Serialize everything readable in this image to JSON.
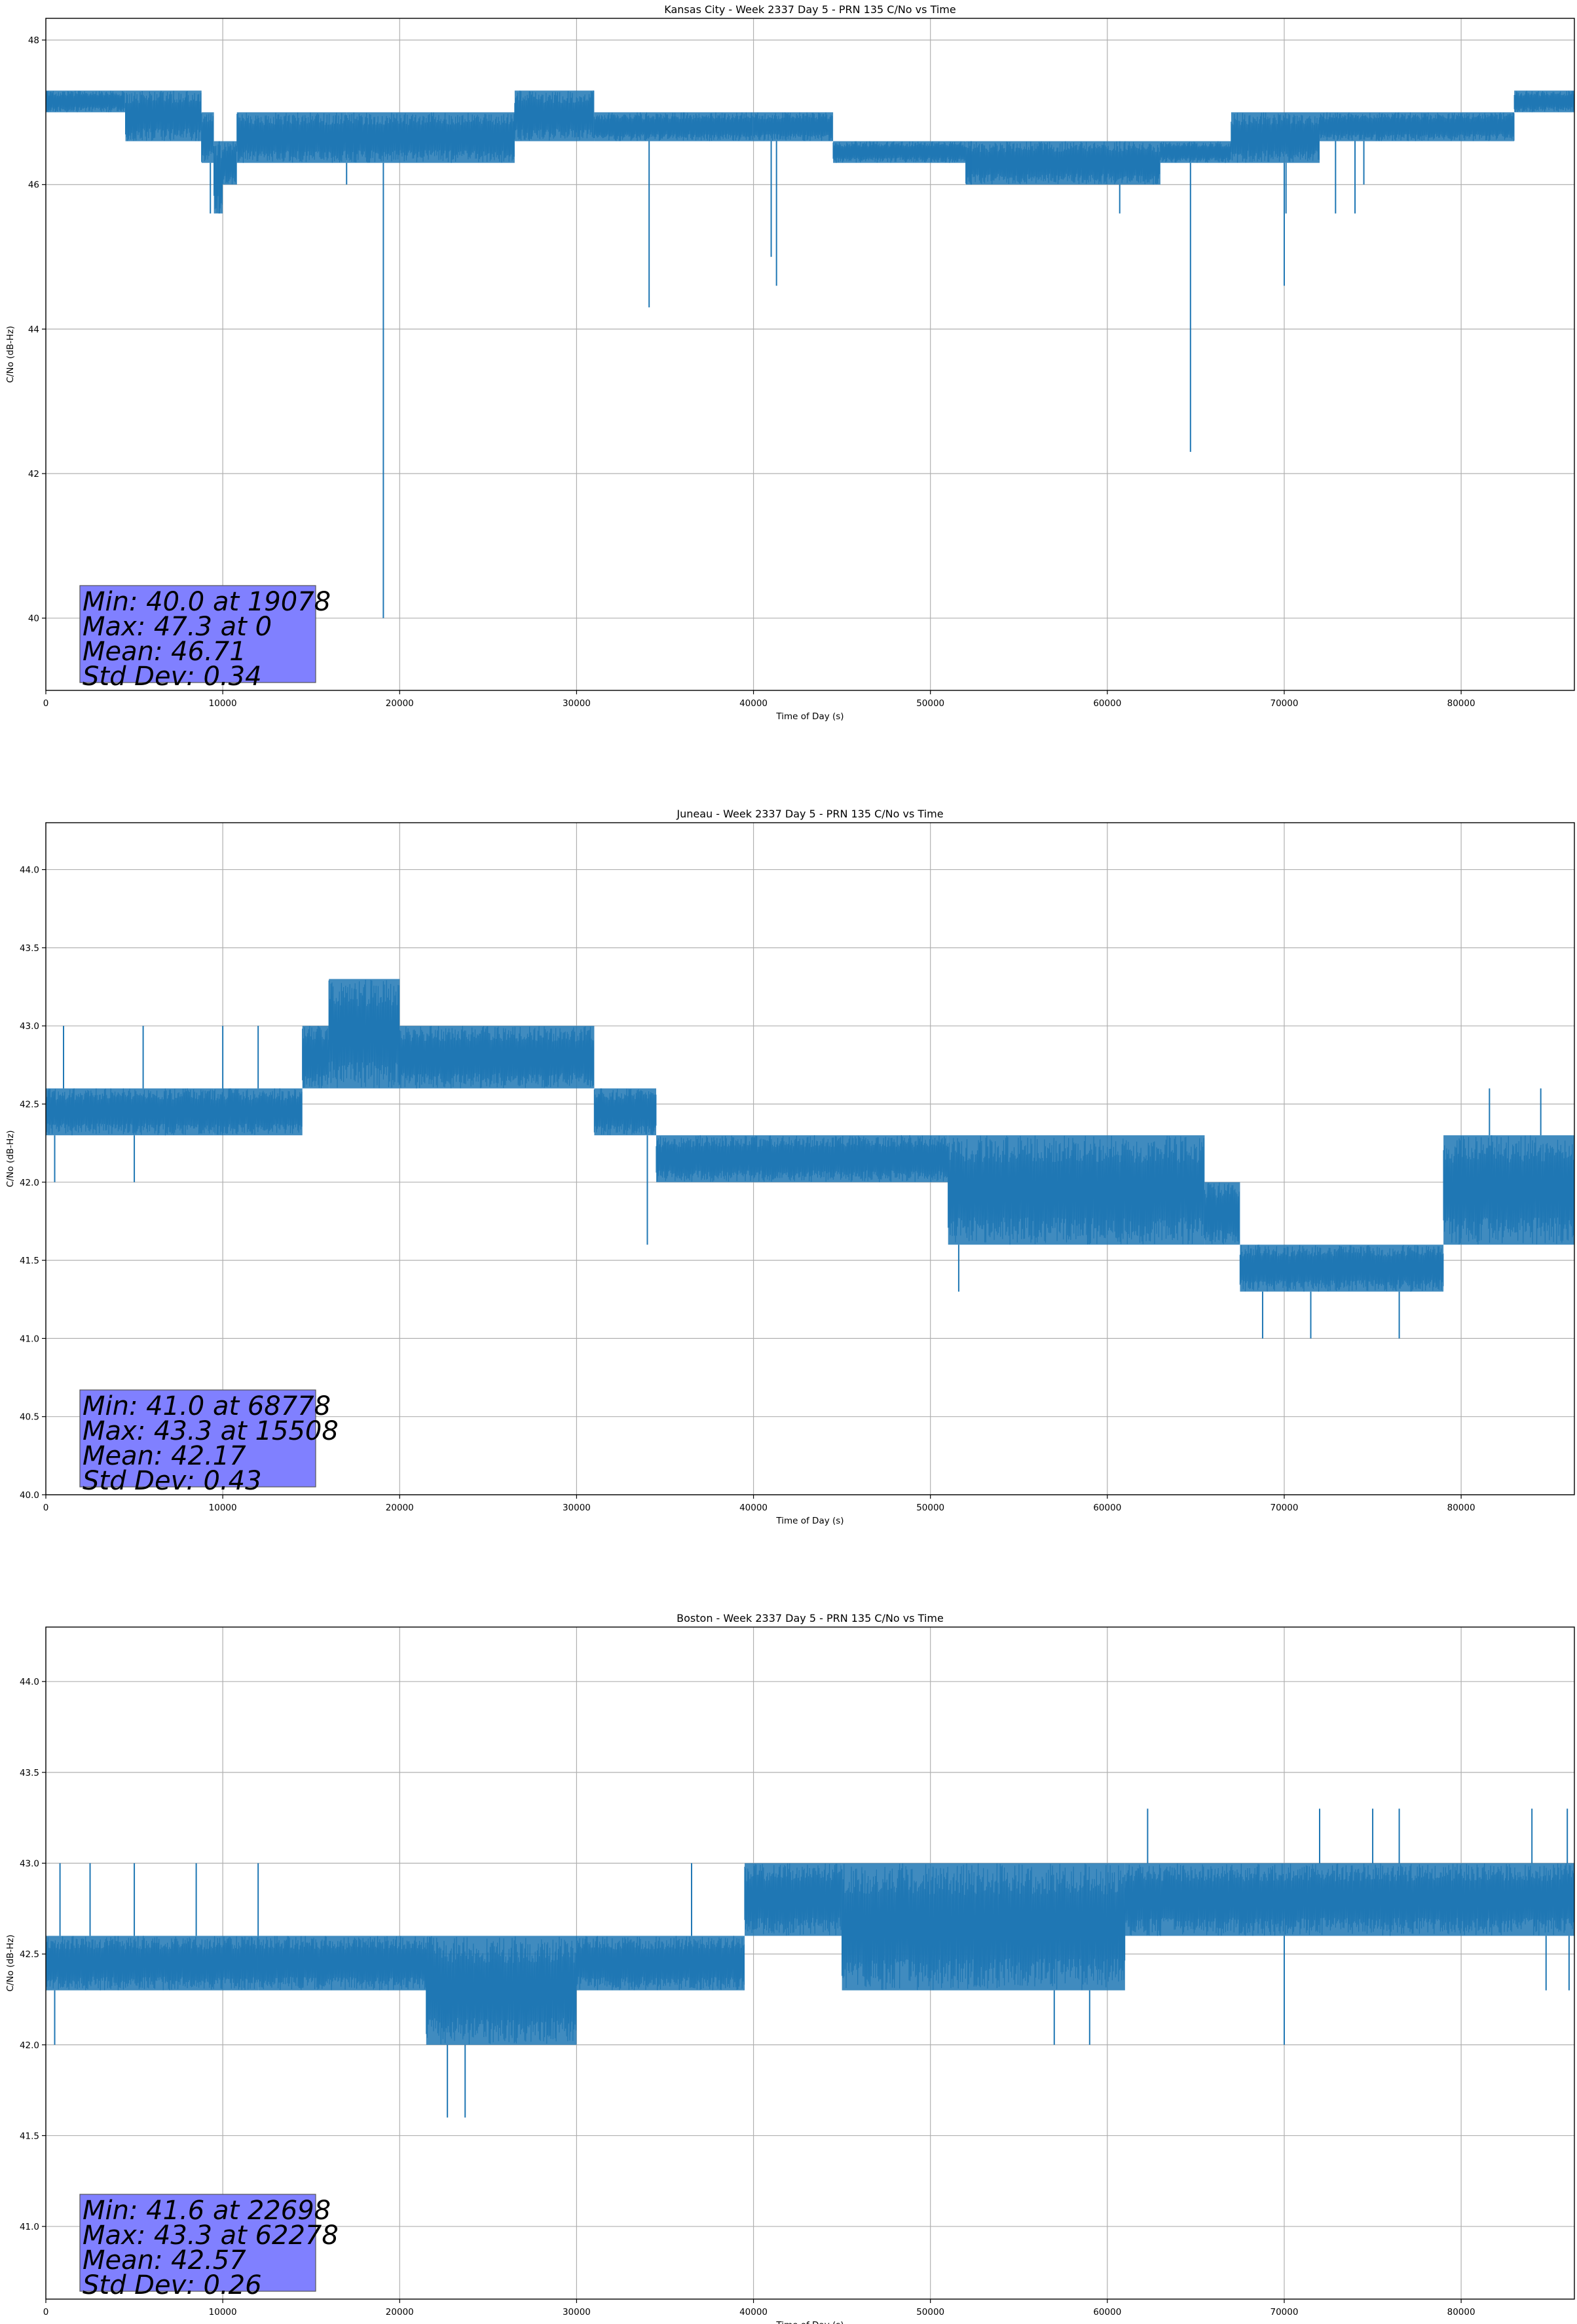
{
  "figure": {
    "background": "#ffffff",
    "line_color": "#1f77b4",
    "grid_color": "#b0b0b0",
    "stats_box_color": "#8080ff"
  },
  "chart_data": [
    {
      "type": "line",
      "title": "Kansas City - Week 2337 Day 5 - PRN 135 C/No vs Time",
      "xlabel": "Time of Day (s)",
      "ylabel": "C/No (dB-Hz)",
      "xlim": [
        0,
        86400
      ],
      "ylim": [
        39.0,
        48.3
      ],
      "xticks": [
        0,
        10000,
        20000,
        30000,
        40000,
        50000,
        60000,
        70000,
        80000
      ],
      "xtick_labels": [
        "0",
        "10000",
        "20000",
        "30000",
        "40000",
        "50000",
        "60000",
        "70000",
        "80000"
      ],
      "yticks": [
        40,
        42,
        44,
        46,
        48
      ],
      "ytick_labels": [
        "40",
        "42",
        "44",
        "46",
        "48"
      ],
      "grid": true,
      "legend": "none",
      "series": [
        {
          "segments": [
            {
              "x_start": 0,
              "x_end": 4500,
              "low": 47.0,
              "high": 47.3
            },
            {
              "x_start": 4500,
              "x_end": 8800,
              "low": 46.6,
              "high": 47.3
            },
            {
              "x_start": 8800,
              "x_end": 9500,
              "low": 46.3,
              "high": 47.0
            },
            {
              "x_start": 9500,
              "x_end": 10000,
              "low": 45.6,
              "high": 46.6
            },
            {
              "x_start": 10000,
              "x_end": 10800,
              "low": 46.0,
              "high": 46.6
            },
            {
              "x_start": 10800,
              "x_end": 17000,
              "low": 46.3,
              "high": 47.0
            },
            {
              "x_start": 17000,
              "x_end": 26500,
              "low": 46.3,
              "high": 47.0
            },
            {
              "x_start": 26500,
              "x_end": 31000,
              "low": 46.6,
              "high": 47.3
            },
            {
              "x_start": 31000,
              "x_end": 40000,
              "low": 46.6,
              "high": 47.0
            },
            {
              "x_start": 40000,
              "x_end": 44500,
              "low": 46.6,
              "high": 47.0
            },
            {
              "x_start": 44500,
              "x_end": 52000,
              "low": 46.3,
              "high": 46.6
            },
            {
              "x_start": 52000,
              "x_end": 63000,
              "low": 46.0,
              "high": 46.6
            },
            {
              "x_start": 63000,
              "x_end": 67000,
              "low": 46.3,
              "high": 46.6
            },
            {
              "x_start": 67000,
              "x_end": 72000,
              "low": 46.3,
              "high": 47.0
            },
            {
              "x_start": 72000,
              "x_end": 76000,
              "low": 46.6,
              "high": 47.0
            },
            {
              "x_start": 76000,
              "x_end": 83000,
              "low": 46.6,
              "high": 47.0
            },
            {
              "x_start": 83000,
              "x_end": 86400,
              "low": 47.0,
              "high": 47.3
            }
          ],
          "spikes": [
            {
              "x": 9300,
              "y": 45.6
            },
            {
              "x": 9800,
              "y": 45.6
            },
            {
              "x": 17000,
              "y": 46.0
            },
            {
              "x": 19078,
              "y": 40.0
            },
            {
              "x": 34100,
              "y": 44.3
            },
            {
              "x": 41000,
              "y": 45.0
            },
            {
              "x": 41300,
              "y": 44.6
            },
            {
              "x": 52300,
              "y": 46.0
            },
            {
              "x": 60700,
              "y": 45.6
            },
            {
              "x": 64700,
              "y": 42.3
            },
            {
              "x": 70000,
              "y": 44.6
            },
            {
              "x": 70100,
              "y": 45.6
            },
            {
              "x": 72900,
              "y": 45.6
            },
            {
              "x": 74000,
              "y": 45.6
            },
            {
              "x": 74500,
              "y": 46.0
            }
          ]
        }
      ],
      "stats": [
        "Min: 40.0 at 19078",
        "Max: 47.3 at 0",
        "Mean: 46.71",
        "Std Dev: 0.34"
      ]
    },
    {
      "type": "line",
      "title": "Juneau - Week 2337 Day 5 - PRN 135 C/No vs Time",
      "xlabel": "Time of Day (s)",
      "ylabel": "C/No (dB-Hz)",
      "xlim": [
        0,
        86400
      ],
      "ylim": [
        40.0,
        44.3
      ],
      "xticks": [
        0,
        10000,
        20000,
        30000,
        40000,
        50000,
        60000,
        70000,
        80000
      ],
      "xtick_labels": [
        "0",
        "10000",
        "20000",
        "30000",
        "40000",
        "50000",
        "60000",
        "70000",
        "80000"
      ],
      "yticks": [
        40.0,
        40.5,
        41.0,
        41.5,
        42.0,
        42.5,
        43.0,
        43.5,
        44.0
      ],
      "ytick_labels": [
        "40.0",
        "40.5",
        "41.0",
        "41.5",
        "42.0",
        "42.5",
        "43.0",
        "43.5",
        "44.0"
      ],
      "grid": true,
      "legend": "none",
      "series": [
        {
          "segments": [
            {
              "x_start": 0,
              "x_end": 9500,
              "low": 42.3,
              "high": 42.6
            },
            {
              "x_start": 9500,
              "x_end": 14500,
              "low": 42.3,
              "high": 42.6
            },
            {
              "x_start": 14500,
              "x_end": 16000,
              "low": 42.6,
              "high": 43.0
            },
            {
              "x_start": 16000,
              "x_end": 20000,
              "low": 42.6,
              "high": 43.3
            },
            {
              "x_start": 20000,
              "x_end": 31000,
              "low": 42.6,
              "high": 43.0
            },
            {
              "x_start": 31000,
              "x_end": 34500,
              "low": 42.3,
              "high": 42.6
            },
            {
              "x_start": 34500,
              "x_end": 51000,
              "low": 42.0,
              "high": 42.3
            },
            {
              "x_start": 51000,
              "x_end": 65500,
              "low": 41.6,
              "high": 42.3
            },
            {
              "x_start": 65500,
              "x_end": 67500,
              "low": 41.6,
              "high": 42.0
            },
            {
              "x_start": 67500,
              "x_end": 79000,
              "low": 41.3,
              "high": 41.6
            },
            {
              "x_start": 79000,
              "x_end": 86400,
              "low": 41.6,
              "high": 42.3
            }
          ],
          "spikes": [
            {
              "x": 500,
              "y": 42.0
            },
            {
              "x": 1000,
              "y": 43.0
            },
            {
              "x": 5000,
              "y": 42.0
            },
            {
              "x": 5500,
              "y": 43.0
            },
            {
              "x": 10000,
              "y": 43.0
            },
            {
              "x": 12000,
              "y": 43.0
            },
            {
              "x": 34000,
              "y": 41.6
            },
            {
              "x": 51600,
              "y": 41.3
            },
            {
              "x": 57000,
              "y": 42.3
            },
            {
              "x": 68778,
              "y": 41.0
            },
            {
              "x": 71500,
              "y": 41.0
            },
            {
              "x": 76500,
              "y": 41.0
            },
            {
              "x": 81600,
              "y": 42.6
            },
            {
              "x": 84500,
              "y": 42.6
            }
          ]
        }
      ],
      "stats": [
        "Min: 41.0 at 68778",
        "Max: 43.3 at 15508",
        "Mean: 42.17",
        "Std Dev: 0.43"
      ]
    },
    {
      "type": "line",
      "title": "Boston - Week 2337 Day 5 - PRN 135 C/No vs Time",
      "xlabel": "Time of Day (s)",
      "ylabel": "C/No (dB-Hz)",
      "xlim": [
        0,
        86400
      ],
      "ylim": [
        40.6,
        44.3
      ],
      "xticks": [
        0,
        10000,
        20000,
        30000,
        40000,
        50000,
        60000,
        70000,
        80000
      ],
      "xtick_labels": [
        "0",
        "10000",
        "20000",
        "30000",
        "40000",
        "50000",
        "60000",
        "70000",
        "80000"
      ],
      "yticks": [
        41.0,
        41.5,
        42.0,
        42.5,
        43.0,
        43.5,
        44.0
      ],
      "ytick_labels": [
        "41.0",
        "41.5",
        "42.0",
        "42.5",
        "43.0",
        "43.5",
        "44.0"
      ],
      "grid": true,
      "legend": "none",
      "series": [
        {
          "segments": [
            {
              "x_start": 0,
              "x_end": 12000,
              "low": 42.3,
              "high": 42.6
            },
            {
              "x_start": 12000,
              "x_end": 21500,
              "low": 42.3,
              "high": 42.6
            },
            {
              "x_start": 21500,
              "x_end": 30000,
              "low": 42.0,
              "high": 42.6
            },
            {
              "x_start": 30000,
              "x_end": 39500,
              "low": 42.3,
              "high": 42.6
            },
            {
              "x_start": 39500,
              "x_end": 45000,
              "low": 42.6,
              "high": 43.0
            },
            {
              "x_start": 45000,
              "x_end": 61000,
              "low": 42.3,
              "high": 43.0
            },
            {
              "x_start": 61000,
              "x_end": 86400,
              "low": 42.6,
              "high": 43.0
            }
          ],
          "spikes": [
            {
              "x": 500,
              "y": 42.0
            },
            {
              "x": 800,
              "y": 43.0
            },
            {
              "x": 2500,
              "y": 43.0
            },
            {
              "x": 5000,
              "y": 43.0
            },
            {
              "x": 8500,
              "y": 43.0
            },
            {
              "x": 12000,
              "y": 43.0
            },
            {
              "x": 22698,
              "y": 41.6
            },
            {
              "x": 23700,
              "y": 41.6
            },
            {
              "x": 36500,
              "y": 43.0
            },
            {
              "x": 57000,
              "y": 42.0
            },
            {
              "x": 59000,
              "y": 42.0
            },
            {
              "x": 62278,
              "y": 43.3
            },
            {
              "x": 70000,
              "y": 42.0
            },
            {
              "x": 72000,
              "y": 43.3
            },
            {
              "x": 75000,
              "y": 43.3
            },
            {
              "x": 76500,
              "y": 43.3
            },
            {
              "x": 84000,
              "y": 43.3
            },
            {
              "x": 84800,
              "y": 42.3
            },
            {
              "x": 86000,
              "y": 43.3
            },
            {
              "x": 86100,
              "y": 42.3
            }
          ]
        }
      ],
      "stats": [
        "Min: 41.6 at 22698",
        "Max: 43.3 at 62278",
        "Mean: 42.57",
        "Std Dev: 0.26"
      ]
    }
  ]
}
